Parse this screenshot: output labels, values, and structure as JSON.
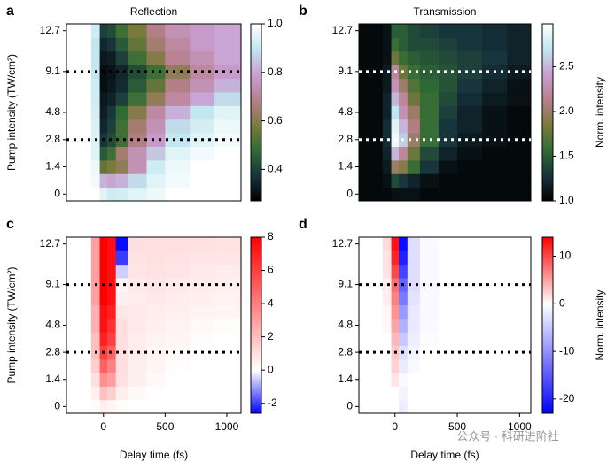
{
  "chart_data": [
    {
      "type": "heatmap",
      "label": "a",
      "title": "Reflection",
      "ylabel": "Pump intensity (TW/cm²)",
      "categories": [
        "0",
        null,
        "1.4",
        null,
        "2.8",
        null,
        "4.8",
        null,
        null,
        "9.1",
        null,
        null,
        "12.7"
      ],
      "xbins": [
        -300,
        -100,
        -30,
        30,
        100,
        200,
        350,
        500,
        700,
        900,
        1115
      ],
      "xlim": [
        -300,
        1115
      ],
      "hlines": [
        9.1,
        2.8
      ],
      "colormap": [
        "#000000",
        "#17323c",
        "#2f6b34",
        "#7b7a3c",
        "#b77f8c",
        "#c99fd0",
        "#bfe6ef",
        "#ffffff"
      ],
      "clim": [
        0.27,
        1.0
      ],
      "cticks": [
        0.4,
        0.6,
        0.8,
        {
          "value": 1,
          "label": "1.0"
        }
      ],
      "z": [
        [
          1,
          1,
          0.95,
          0.92,
          0.93,
          0.95,
          0.97,
          1,
          1,
          1
        ],
        [
          1,
          0.98,
          0.82,
          0.8,
          0.82,
          0.88,
          0.95,
          0.98,
          1,
          1
        ],
        [
          1,
          0.97,
          0.55,
          0.58,
          0.62,
          0.75,
          0.92,
          0.97,
          1,
          1
        ],
        [
          1,
          0.95,
          0.45,
          0.5,
          0.65,
          0.75,
          0.85,
          0.95,
          0.98,
          1
        ],
        [
          1,
          0.95,
          0.38,
          0.42,
          0.5,
          0.68,
          0.78,
          0.9,
          0.95,
          0.98
        ],
        [
          1,
          0.94,
          0.35,
          0.4,
          0.5,
          0.65,
          0.75,
          0.88,
          0.93,
          0.97
        ],
        [
          1,
          0.93,
          0.33,
          0.38,
          0.48,
          0.6,
          0.72,
          0.82,
          0.9,
          0.95
        ],
        [
          1,
          0.92,
          0.32,
          0.34,
          0.4,
          0.5,
          0.62,
          0.72,
          0.8,
          0.88
        ],
        [
          1,
          0.92,
          0.3,
          0.32,
          0.36,
          0.45,
          0.55,
          0.68,
          0.75,
          0.82
        ],
        [
          1,
          0.9,
          0.3,
          0.31,
          0.35,
          0.42,
          0.5,
          0.62,
          0.72,
          0.78
        ],
        [
          1,
          0.9,
          0.32,
          0.33,
          0.4,
          0.5,
          0.6,
          0.7,
          0.75,
          0.8
        ],
        [
          1,
          0.9,
          0.35,
          0.38,
          0.45,
          0.55,
          0.65,
          0.72,
          0.78,
          0.8
        ],
        [
          1,
          0.92,
          0.4,
          0.42,
          0.5,
          0.58,
          0.68,
          0.75,
          0.78,
          0.8
        ]
      ]
    },
    {
      "type": "heatmap",
      "label": "b",
      "title": "Transmission",
      "clabel": "Norm. intensity",
      "categories": [
        "0",
        null,
        "1.4",
        null,
        "2.8",
        null,
        "4.8",
        null,
        null,
        "9.1",
        null,
        null,
        "12.7"
      ],
      "xbins": [
        -290,
        -100,
        -30,
        30,
        100,
        200,
        350,
        500,
        700,
        900,
        1090
      ],
      "xlim": [
        -290,
        1090
      ],
      "hlines": [
        9.1,
        2.8
      ],
      "colormap": [
        "#000000",
        "#17323c",
        "#2f6b34",
        "#7b7a3c",
        "#b77f8c",
        "#c99fd0",
        "#bfe6ef",
        "#ffffff"
      ],
      "clim": [
        1.0,
        2.98
      ],
      "cticks": [
        {
          "value": 1,
          "label": "1.0"
        },
        1.5,
        {
          "value": 2,
          "label": "2.0"
        },
        2.5
      ],
      "z": [
        [
          1.05,
          1.05,
          1.1,
          1.1,
          1.1,
          1.05,
          1.05,
          1.05,
          1.05,
          1.05
        ],
        [
          1.05,
          1.1,
          1.4,
          1.3,
          1.2,
          1.1,
          1.05,
          1.05,
          1.05,
          1.05
        ],
        [
          1.05,
          1.15,
          2.0,
          1.9,
          1.6,
          1.3,
          1.1,
          1.05,
          1.05,
          1.05
        ],
        [
          1.05,
          1.2,
          2.5,
          2.2,
          1.8,
          1.4,
          1.2,
          1.1,
          1.05,
          1.05
        ],
        [
          1.05,
          1.25,
          2.9,
          2.6,
          2.0,
          1.6,
          1.3,
          1.15,
          1.1,
          1.05
        ],
        [
          1.05,
          1.25,
          2.85,
          2.5,
          2.1,
          1.6,
          1.3,
          1.2,
          1.1,
          1.05
        ],
        [
          1.05,
          1.2,
          2.7,
          2.3,
          2.0,
          1.6,
          1.35,
          1.2,
          1.1,
          1.05
        ],
        [
          1.05,
          1.2,
          2.5,
          2.2,
          1.8,
          1.6,
          1.4,
          1.25,
          1.15,
          1.1
        ],
        [
          1.05,
          1.15,
          2.3,
          2.0,
          1.7,
          1.55,
          1.45,
          1.3,
          1.2,
          1.1
        ],
        [
          1.05,
          1.15,
          2.2,
          1.8,
          1.6,
          1.5,
          1.45,
          1.35,
          1.25,
          1.15
        ],
        [
          1.05,
          1.1,
          1.8,
          1.6,
          1.5,
          1.45,
          1.4,
          1.35,
          1.3,
          1.2
        ],
        [
          1.05,
          1.1,
          1.6,
          1.5,
          1.4,
          1.4,
          1.35,
          1.3,
          1.25,
          1.2
        ],
        [
          1.05,
          1.1,
          1.5,
          1.5,
          1.4,
          1.35,
          1.3,
          1.3,
          1.25,
          1.2
        ]
      ]
    },
    {
      "type": "heatmap",
      "label": "c",
      "ylabel": "Pump intensity (TW/cm²)",
      "xlabel": "Delay time (fs)",
      "categories": [
        "0",
        null,
        "1.4",
        null,
        "2.8",
        null,
        "4.8",
        null,
        null,
        "9.1",
        null,
        null,
        "12.7"
      ],
      "xbins": [
        -300,
        -100,
        -30,
        30,
        100,
        200,
        350,
        500,
        700,
        900,
        1115
      ],
      "xlim": [
        -300,
        1115
      ],
      "xticks": [
        0,
        500,
        1000
      ],
      "hlines": [
        9.1,
        2.8
      ],
      "colormap": [
        "#0000ff",
        "#ffffff",
        "#ff0000"
      ],
      "center": 0,
      "clim": [
        -2.6,
        8
      ],
      "cticks": [
        -2,
        0,
        2,
        4,
        6,
        8
      ],
      "z": [
        [
          0,
          0.1,
          0.5,
          0.3,
          0.1,
          0,
          0,
          0,
          0,
          0
        ],
        [
          0,
          0.5,
          2,
          1.5,
          0.5,
          0.2,
          0,
          0,
          0,
          0
        ],
        [
          0,
          1,
          3.5,
          3,
          1,
          0.5,
          0.2,
          0,
          0,
          0
        ],
        [
          0,
          1.5,
          5,
          4,
          1,
          0.5,
          0.3,
          0.1,
          0,
          0
        ],
        [
          0,
          2,
          6,
          5,
          1,
          0.6,
          0.3,
          0.2,
          0,
          0
        ],
        [
          0,
          2,
          7,
          6,
          1,
          0.6,
          0.4,
          0.3,
          0.1,
          0
        ],
        [
          0,
          2.5,
          7.5,
          6.5,
          1,
          0.7,
          0.5,
          0.4,
          0.2,
          0.1
        ],
        [
          0,
          2.5,
          7.5,
          7,
          0.8,
          0.7,
          0.6,
          0.5,
          0.4,
          0.3
        ],
        [
          0,
          3,
          8,
          7.5,
          0.5,
          0.6,
          0.7,
          0.6,
          0.5,
          0.4
        ],
        [
          0,
          3,
          8,
          7.5,
          0.3,
          0.7,
          0.8,
          0.7,
          0.6,
          0.5
        ],
        [
          0,
          3,
          8,
          7.5,
          -0.5,
          0.8,
          0.9,
          0.8,
          0.7,
          0.6
        ],
        [
          0,
          3,
          8,
          7.5,
          -2,
          0.9,
          1,
          0.9,
          0.8,
          0.8
        ],
        [
          0,
          3,
          8,
          7.5,
          -2.5,
          1,
          1,
          1,
          1,
          0.9
        ]
      ]
    },
    {
      "type": "heatmap",
      "label": "d",
      "xlabel": "Delay time (fs)",
      "clabel": "Norm. intensity",
      "categories": [
        "0",
        null,
        "1.4",
        null,
        "2.8",
        null,
        "4.8",
        null,
        null,
        "9.1",
        null,
        null,
        "12.7"
      ],
      "xbins": [
        -290,
        -100,
        -30,
        30,
        100,
        200,
        350,
        500,
        700,
        900,
        1090
      ],
      "xlim": [
        -290,
        1090
      ],
      "xticks": [
        0,
        500,
        1000
      ],
      "hlines": [
        9.1,
        2.8
      ],
      "colormap": [
        "#0000ff",
        "#ffffff",
        "#ff0000"
      ],
      "center": 0,
      "clim": [
        -23,
        14
      ],
      "cticks": [
        -20,
        -10,
        0,
        10
      ],
      "z": [
        [
          0,
          0,
          0,
          -1.5,
          0,
          0,
          0,
          0,
          0,
          0
        ],
        [
          0,
          0,
          0,
          -1,
          0,
          0,
          0,
          0,
          0,
          0
        ],
        [
          0,
          0,
          1.5,
          -0.5,
          0,
          0,
          0,
          0,
          0,
          0
        ],
        [
          0,
          0,
          2.5,
          -2,
          -0.5,
          0,
          0,
          0,
          0,
          0
        ],
        [
          0,
          0,
          3,
          -3,
          -1,
          0,
          0,
          0,
          0,
          0
        ],
        [
          0,
          0,
          4,
          -5,
          -1.5,
          -0.3,
          0,
          0,
          0,
          0
        ],
        [
          0,
          0.5,
          5,
          -7,
          -2,
          -0.5,
          0,
          0,
          0,
          0
        ],
        [
          0,
          0.5,
          6,
          -9,
          -2,
          -0.5,
          0,
          0,
          0,
          0
        ],
        [
          0,
          1,
          7,
          -12,
          -2.5,
          -0.5,
          0,
          0,
          0,
          0
        ],
        [
          0,
          1,
          8,
          -14,
          -3,
          -0.5,
          0,
          0,
          0,
          0
        ],
        [
          0,
          1.5,
          10,
          -17,
          -3,
          -0.5,
          0,
          0,
          0,
          0
        ],
        [
          0,
          1.5,
          12,
          -20,
          -3,
          -0.5,
          0,
          0,
          0,
          0
        ],
        [
          0,
          2,
          13,
          -22,
          -3,
          -0.5,
          0,
          0,
          0,
          0
        ]
      ]
    }
  ],
  "watermark": "公众号 · 科研进阶社"
}
